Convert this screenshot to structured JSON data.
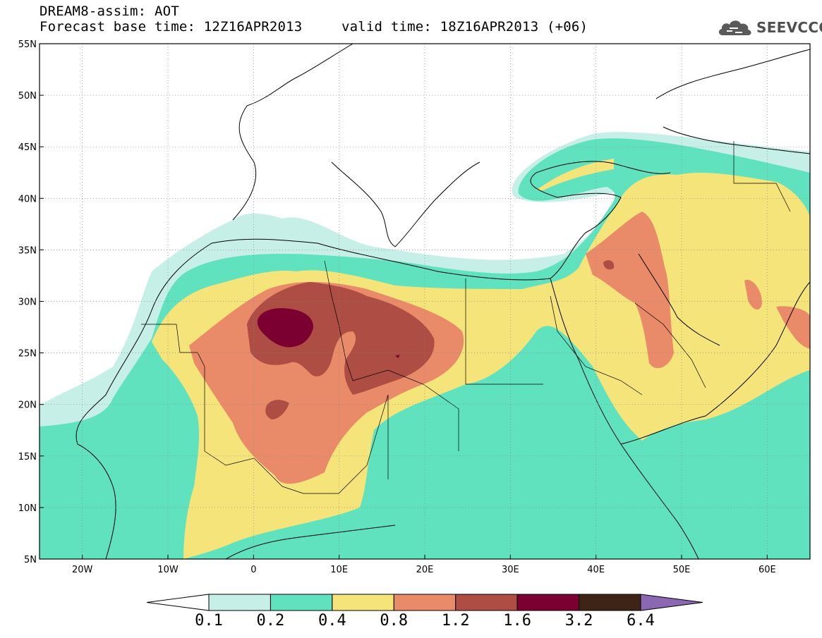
{
  "title": {
    "line1": "DREAM8-assim: AOT",
    "line2_base": "Forecast base time: 12Z16APR2013",
    "line2_valid": "valid time: 18Z16APR2013 (+06)"
  },
  "logo": {
    "text": "SEEVCCC",
    "icon": "cloud-icon"
  },
  "map": {
    "lat_range": [
      5,
      55
    ],
    "lon_range": [
      -25,
      65
    ],
    "lat_ticks": [
      {
        "value": 55,
        "label": "55N"
      },
      {
        "value": 50,
        "label": "50N"
      },
      {
        "value": 45,
        "label": "45N"
      },
      {
        "value": 40,
        "label": "40N"
      },
      {
        "value": 35,
        "label": "35N"
      },
      {
        "value": 30,
        "label": "30N"
      },
      {
        "value": 25,
        "label": "25N"
      },
      {
        "value": 20,
        "label": "20N"
      },
      {
        "value": 15,
        "label": "15N"
      },
      {
        "value": 10,
        "label": "10N"
      },
      {
        "value": 5,
        "label": "5N"
      }
    ],
    "lon_ticks": [
      {
        "value": -20,
        "label": "20W"
      },
      {
        "value": -10,
        "label": "10W"
      },
      {
        "value": 0,
        "label": "0"
      },
      {
        "value": 10,
        "label": "10E"
      },
      {
        "value": 20,
        "label": "20E"
      },
      {
        "value": 30,
        "label": "30E"
      },
      {
        "value": 40,
        "label": "40E"
      },
      {
        "value": 50,
        "label": "50E"
      },
      {
        "value": 60,
        "label": "60E"
      }
    ],
    "grid": true,
    "grid_style": "dotted"
  },
  "colorbar": {
    "levels": [
      "0.1",
      "0.2",
      "0.4",
      "0.8",
      "1.2",
      "1.6",
      "3.2",
      "6.4"
    ],
    "colors": [
      "#ffffff",
      "#c6efe8",
      "#5fe2bd",
      "#f5e47a",
      "#e98b68",
      "#ad4d44",
      "#7b0031",
      "#3e2416",
      "#8c68b2"
    ],
    "extend": "both"
  }
}
